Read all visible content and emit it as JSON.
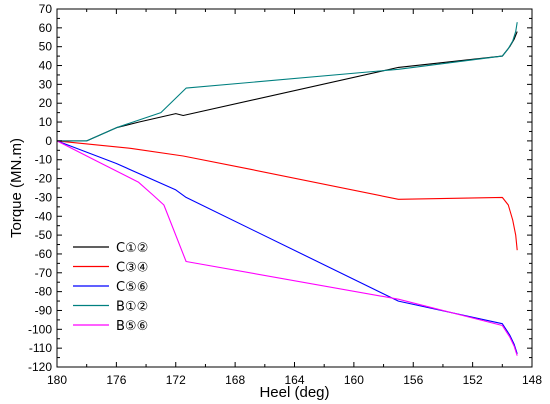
{
  "chart_data": {
    "type": "line",
    "xlabel": "Heel (deg)",
    "ylabel": "Torque (MN.m)",
    "xlim": [
      180,
      148
    ],
    "ylim": [
      -120,
      70
    ],
    "x_ticks": [
      "180",
      "176",
      "172",
      "168",
      "164",
      "160",
      "156",
      "152",
      "148"
    ],
    "y_ticks": [
      "70",
      "60",
      "50",
      "40",
      "30",
      "20",
      "10",
      "0",
      "-10",
      "-20",
      "-30",
      "-40",
      "-50",
      "-60",
      "-70",
      "-80",
      "-90",
      "-100",
      "-110",
      "-120"
    ],
    "grid": false,
    "legend_position": "lower-left",
    "series": [
      {
        "name": "C①②",
        "color": "#000000",
        "points": [
          [
            180,
            0
          ],
          [
            178,
            0
          ],
          [
            176,
            7
          ],
          [
            174.5,
            10
          ],
          [
            172,
            14.5
          ],
          [
            171.5,
            13.5
          ],
          [
            157,
            39
          ],
          [
            150,
            45
          ],
          [
            149.5,
            50
          ],
          [
            149.2,
            54
          ],
          [
            149,
            58
          ]
        ]
      },
      {
        "name": "C③④",
        "color": "#ff0000",
        "points": [
          [
            180,
            0
          ],
          [
            175,
            -4
          ],
          [
            171.5,
            -8
          ],
          [
            167,
            -15
          ],
          [
            157,
            -31
          ],
          [
            150,
            -30
          ],
          [
            149.6,
            -34
          ],
          [
            149.3,
            -42
          ],
          [
            149.1,
            -50
          ],
          [
            149,
            -58
          ]
        ]
      },
      {
        "name": "C⑤⑥",
        "color": "#0000ff",
        "points": [
          [
            180,
            0
          ],
          [
            176,
            -12
          ],
          [
            172,
            -26
          ],
          [
            171.3,
            -30
          ],
          [
            157,
            -85
          ],
          [
            150,
            -97
          ],
          [
            149.5,
            -103
          ],
          [
            149.2,
            -108
          ],
          [
            149,
            -113
          ]
        ]
      },
      {
        "name": "B①②",
        "color": "#008080",
        "points": [
          [
            180,
            0
          ],
          [
            178,
            0
          ],
          [
            176,
            7
          ],
          [
            173,
            15
          ],
          [
            171.3,
            28
          ],
          [
            157,
            38
          ],
          [
            150,
            45
          ],
          [
            149.6,
            49
          ],
          [
            149.3,
            53
          ],
          [
            149.1,
            58
          ],
          [
            149,
            63
          ]
        ]
      },
      {
        "name": "B⑤⑥",
        "color": "#ff00ff",
        "points": [
          [
            180,
            0
          ],
          [
            177.5,
            -10
          ],
          [
            174.5,
            -22
          ],
          [
            173.5,
            -29
          ],
          [
            172.8,
            -34
          ],
          [
            171.3,
            -64
          ],
          [
            157,
            -84
          ],
          [
            150,
            -98
          ],
          [
            149.5,
            -104
          ],
          [
            149.2,
            -109
          ],
          [
            149,
            -114
          ]
        ]
      }
    ]
  }
}
